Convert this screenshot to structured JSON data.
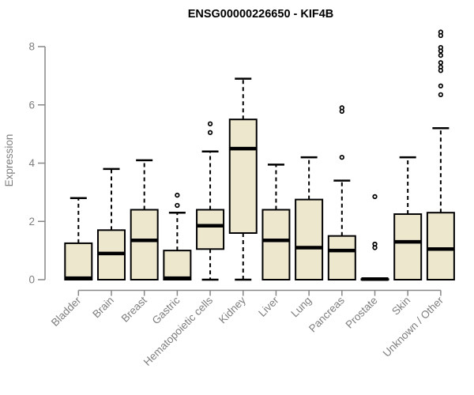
{
  "chart_data": {
    "type": "boxplot",
    "title": "ENSG00000226650 - KIF4B",
    "xlabel": "",
    "ylabel": "Expression",
    "ylim": [
      0,
      8
    ],
    "yticks": [
      0,
      2,
      4,
      6,
      8
    ],
    "grid": false,
    "legend": "none",
    "categories": [
      "Bladder",
      "Brain",
      "Breast",
      "Gastric",
      "Hematopoietic cells",
      "Kidney",
      "Liver",
      "Lung",
      "Pancreas",
      "Prostate",
      "Skin",
      "Unknown / Other"
    ],
    "boxes": [
      {
        "category": "Bladder",
        "whisker_low": 0,
        "q1": 0,
        "median": 0.05,
        "q3": 1.25,
        "whisker_high": 2.8,
        "outliers": []
      },
      {
        "category": "Brain",
        "whisker_low": 0,
        "q1": 0,
        "median": 0.9,
        "q3": 1.7,
        "whisker_high": 3.8,
        "outliers": []
      },
      {
        "category": "Breast",
        "whisker_low": 0,
        "q1": 0,
        "median": 1.35,
        "q3": 2.4,
        "whisker_high": 4.1,
        "outliers": []
      },
      {
        "category": "Gastric",
        "whisker_low": 0,
        "q1": 0,
        "median": 0.05,
        "q3": 1.0,
        "whisker_high": 2.3,
        "outliers": [
          2.9,
          2.55
        ]
      },
      {
        "category": "Hematopoietic cells",
        "whisker_low": 0,
        "q1": 1.05,
        "median": 1.85,
        "q3": 2.4,
        "whisker_high": 4.4,
        "outliers": [
          5.35,
          5.05
        ]
      },
      {
        "category": "Kidney",
        "whisker_low": 0,
        "q1": 1.6,
        "median": 4.5,
        "q3": 5.5,
        "whisker_high": 6.9,
        "outliers": []
      },
      {
        "category": "Liver",
        "whisker_low": 0,
        "q1": 0,
        "median": 1.35,
        "q3": 2.4,
        "whisker_high": 3.95,
        "outliers": []
      },
      {
        "category": "Lung",
        "whisker_low": 0,
        "q1": 0,
        "median": 1.1,
        "q3": 2.75,
        "whisker_high": 4.2,
        "outliers": []
      },
      {
        "category": "Pancreas",
        "whisker_low": 0,
        "q1": 0,
        "median": 1.0,
        "q3": 1.5,
        "whisker_high": 3.4,
        "outliers": [
          5.9,
          5.78,
          4.2
        ]
      },
      {
        "category": "Prostate",
        "whisker_low": 0,
        "q1": 0,
        "median": 0.02,
        "q3": 0.02,
        "whisker_high": 0.02,
        "outliers": [
          2.85,
          1.22,
          1.1
        ]
      },
      {
        "category": "Skin",
        "whisker_low": 0,
        "q1": 0,
        "median": 1.3,
        "q3": 2.25,
        "whisker_high": 4.2,
        "outliers": []
      },
      {
        "category": "Unknown / Other",
        "whisker_low": 0,
        "q1": 0,
        "median": 1.05,
        "q3": 2.3,
        "whisker_high": 5.2,
        "outliers": [
          8.5,
          8.38,
          7.97,
          7.85,
          7.7,
          7.45,
          7.3,
          7.18,
          6.65,
          6.35
        ]
      }
    ],
    "colors": {
      "box_fill": "#EDE7CD",
      "box_border": "#000000",
      "median": "#000000",
      "whisker": "#000000",
      "outlier_stroke": "#000000",
      "outlier_fill": "#ffffff",
      "axis": "#878787",
      "tick_label": "#7E7E7E",
      "title": "#000000",
      "background": "#ffffff"
    }
  }
}
